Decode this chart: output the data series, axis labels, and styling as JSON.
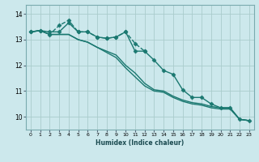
{
  "xlabel": "Humidex (Indice chaleur)",
  "ylabel": "",
  "background_color": "#cce8ec",
  "grid_color": "#aacccc",
  "line_color": "#1a7870",
  "xlim": [
    -0.5,
    23.5
  ],
  "ylim": [
    9.5,
    14.35
  ],
  "yticks": [
    10,
    11,
    12,
    13,
    14
  ],
  "xticks": [
    0,
    1,
    2,
    3,
    4,
    5,
    6,
    7,
    8,
    9,
    10,
    11,
    12,
    13,
    14,
    15,
    16,
    17,
    18,
    19,
    20,
    21,
    22,
    23
  ],
  "series": [
    {
      "y": [
        13.3,
        13.35,
        13.3,
        13.3,
        13.65,
        13.3,
        13.3,
        13.1,
        13.05,
        13.1,
        13.3,
        12.55,
        12.55,
        12.2,
        11.8,
        11.65,
        11.05,
        10.75,
        10.75,
        10.5,
        10.35,
        10.35,
        9.9,
        9.85
      ],
      "linestyle": "-",
      "has_markers": true
    },
    {
      "y": [
        13.3,
        13.35,
        13.2,
        13.55,
        13.75,
        13.3,
        13.3,
        13.1,
        13.05,
        13.1,
        13.3,
        12.85,
        12.55,
        null,
        null,
        null,
        null,
        null,
        null,
        null,
        null,
        null,
        null,
        null
      ],
      "linestyle": "--",
      "has_markers": true
    },
    {
      "y": [
        13.3,
        13.35,
        13.2,
        13.2,
        13.2,
        13.0,
        12.9,
        12.7,
        12.55,
        12.4,
        12.0,
        11.7,
        11.3,
        11.05,
        11.0,
        10.8,
        10.65,
        10.55,
        10.5,
        10.4,
        10.35,
        10.35,
        9.9,
        9.85
      ],
      "linestyle": "-",
      "has_markers": false
    },
    {
      "y": [
        13.3,
        13.35,
        13.2,
        13.2,
        13.2,
        13.0,
        12.9,
        12.7,
        12.5,
        12.3,
        11.9,
        11.55,
        11.2,
        11.0,
        10.95,
        10.75,
        10.6,
        10.5,
        10.45,
        10.35,
        10.3,
        10.3,
        9.9,
        9.85
      ],
      "linestyle": "-",
      "has_markers": false
    }
  ],
  "marker": "D",
  "markersize": 2.5,
  "linewidth": 1.0
}
